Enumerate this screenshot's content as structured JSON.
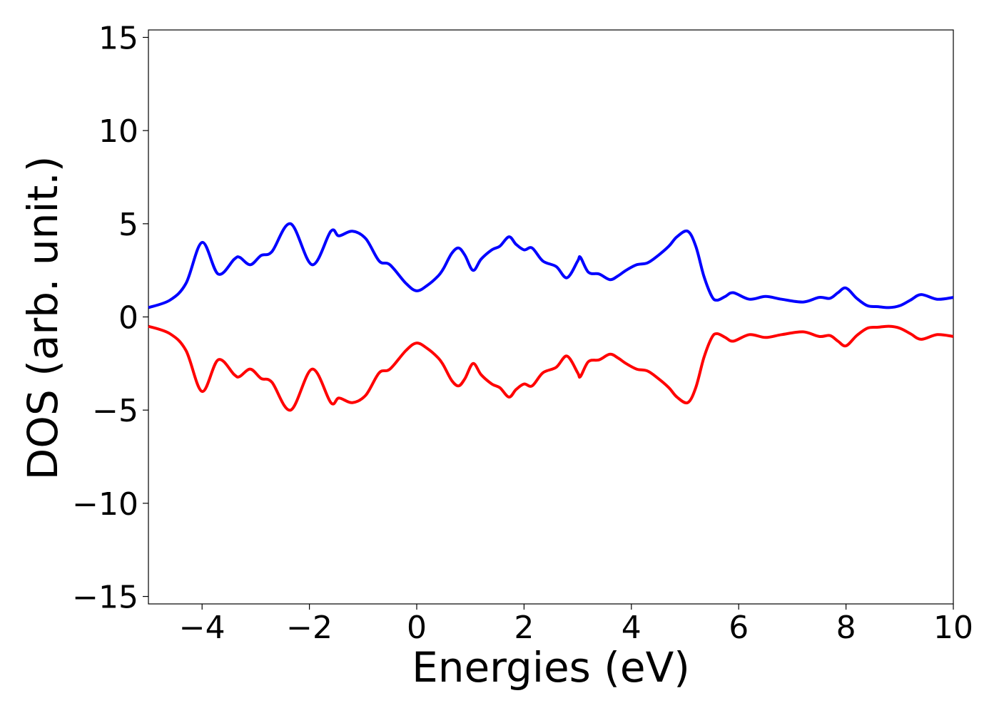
{
  "chart_data": {
    "type": "line",
    "title": "",
    "xlabel": "Energies (eV)",
    "ylabel": "DOS (arb. unit.)",
    "xlim": [
      -5,
      10
    ],
    "ylim": [
      -15.4,
      15.4
    ],
    "xticks": [
      -4,
      -2,
      0,
      2,
      4,
      6,
      8,
      10
    ],
    "xtick_labels": [
      "−4",
      "−2",
      "0",
      "2",
      "4",
      "6",
      "8",
      "10"
    ],
    "yticks": [
      -15,
      -10,
      -5,
      0,
      5,
      10,
      15
    ],
    "ytick_labels": [
      "−15",
      "−10",
      "−5",
      "0",
      "5",
      "10",
      "15"
    ],
    "grid": false,
    "legend": "none",
    "series": [
      {
        "color": "#0000ff",
        "x": [
          -5.0,
          -4.6,
          -4.3,
          -4.0,
          -3.7,
          -3.4,
          -3.3,
          -3.1,
          -2.9,
          -2.7,
          -2.35,
          -1.95,
          -1.6,
          -1.45,
          -1.2,
          -0.95,
          -0.7,
          -0.5,
          -0.2,
          0.0,
          0.2,
          0.4,
          0.5,
          0.65,
          0.78,
          0.9,
          1.05,
          1.2,
          1.4,
          1.55,
          1.72,
          1.85,
          2.0,
          2.15,
          2.35,
          2.6,
          2.8,
          3.0,
          3.05,
          3.2,
          3.4,
          3.6,
          3.75,
          3.9,
          4.1,
          4.3,
          4.5,
          4.7,
          4.85,
          5.05,
          5.2,
          5.35,
          5.5,
          5.6,
          5.75,
          5.9,
          6.2,
          6.5,
          6.8,
          7.2,
          7.5,
          7.7,
          7.85,
          8.0,
          8.2,
          8.4,
          8.6,
          8.8,
          9.0,
          9.2,
          9.4,
          9.7,
          10.0
        ],
        "y": [
          0.5,
          0.9,
          1.8,
          4.0,
          2.3,
          3.1,
          3.2,
          2.8,
          3.3,
          3.5,
          5.0,
          2.8,
          4.6,
          4.35,
          4.6,
          4.2,
          3.0,
          2.8,
          1.8,
          1.4,
          1.7,
          2.2,
          2.6,
          3.4,
          3.7,
          3.3,
          2.5,
          3.1,
          3.6,
          3.8,
          4.3,
          3.9,
          3.6,
          3.7,
          3.0,
          2.7,
          2.1,
          3.0,
          3.2,
          2.4,
          2.3,
          2.0,
          2.2,
          2.5,
          2.8,
          2.9,
          3.3,
          3.8,
          4.3,
          4.6,
          3.8,
          2.2,
          1.1,
          0.9,
          1.1,
          1.3,
          0.95,
          1.1,
          0.95,
          0.8,
          1.05,
          1.0,
          1.3,
          1.55,
          1.0,
          0.6,
          0.55,
          0.5,
          0.6,
          0.9,
          1.2,
          0.95,
          1.05
        ]
      },
      {
        "color": "#ff0000",
        "x": [
          -5.0,
          -4.6,
          -4.3,
          -4.0,
          -3.7,
          -3.4,
          -3.3,
          -3.1,
          -2.9,
          -2.7,
          -2.35,
          -1.95,
          -1.6,
          -1.45,
          -1.2,
          -0.95,
          -0.7,
          -0.5,
          -0.2,
          0.0,
          0.2,
          0.4,
          0.5,
          0.65,
          0.78,
          0.9,
          1.05,
          1.2,
          1.4,
          1.55,
          1.72,
          1.85,
          2.0,
          2.15,
          2.35,
          2.6,
          2.8,
          3.0,
          3.05,
          3.2,
          3.4,
          3.6,
          3.75,
          3.9,
          4.1,
          4.3,
          4.5,
          4.7,
          4.85,
          5.05,
          5.2,
          5.35,
          5.5,
          5.6,
          5.75,
          5.9,
          6.2,
          6.5,
          6.8,
          7.2,
          7.5,
          7.7,
          7.85,
          8.0,
          8.2,
          8.4,
          8.6,
          8.8,
          9.0,
          9.2,
          9.4,
          9.7,
          10.0
        ],
        "y": [
          -0.5,
          -0.9,
          -1.8,
          -4.0,
          -2.3,
          -3.1,
          -3.2,
          -2.8,
          -3.3,
          -3.5,
          -5.0,
          -2.8,
          -4.6,
          -4.35,
          -4.6,
          -4.2,
          -3.0,
          -2.8,
          -1.8,
          -1.4,
          -1.7,
          -2.2,
          -2.6,
          -3.4,
          -3.7,
          -3.3,
          -2.5,
          -3.1,
          -3.6,
          -3.8,
          -4.3,
          -3.9,
          -3.6,
          -3.7,
          -3.0,
          -2.7,
          -2.1,
          -3.0,
          -3.2,
          -2.4,
          -2.3,
          -2.0,
          -2.2,
          -2.5,
          -2.8,
          -2.9,
          -3.3,
          -3.8,
          -4.3,
          -4.6,
          -3.8,
          -2.2,
          -1.1,
          -0.9,
          -1.1,
          -1.3,
          -0.95,
          -1.1,
          -0.95,
          -0.8,
          -1.05,
          -1.0,
          -1.3,
          -1.55,
          -1.0,
          -0.6,
          -0.55,
          -0.5,
          -0.6,
          -0.9,
          -1.2,
          -0.95,
          -1.05
        ]
      }
    ]
  }
}
